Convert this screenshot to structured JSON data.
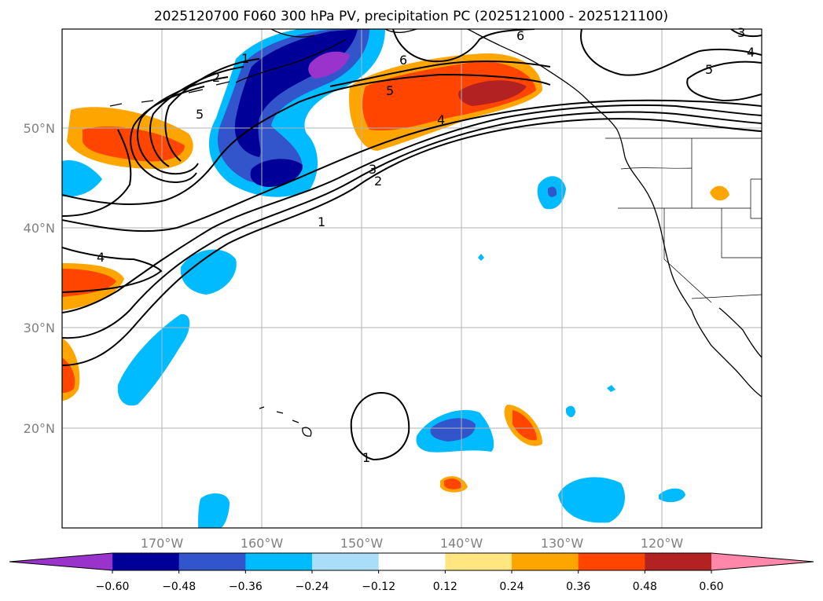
{
  "title": "2025120700 F060 300 hPa PV, precipitation PC (2025121000 - 2025121100)",
  "map": {
    "lat_labels": [
      "50°N",
      "40°N",
      "30°N",
      "20°N"
    ],
    "lon_labels": [
      "170°W",
      "160°W",
      "150°W",
      "140°W",
      "130°W",
      "120°W"
    ],
    "extent": {
      "lon_min": -180,
      "lon_max": -110,
      "lat_min": 10,
      "lat_max": 60
    },
    "gridlines": true
  },
  "pv_contour_labels": [
    "1",
    "2",
    "5",
    "3",
    "2",
    "1",
    "4",
    "5",
    "6",
    "6",
    "5",
    "4",
    "3",
    "1",
    "4"
  ],
  "colorbar": {
    "ticks": [
      "−0.60",
      "−0.48",
      "−0.36",
      "−0.24",
      "−0.12",
      "0.12",
      "0.24",
      "0.36",
      "0.48",
      "0.60"
    ],
    "colors": [
      "#9933cc",
      "#000099",
      "#3355cc",
      "#00bbff",
      "#aaddf7",
      "#ffffff",
      "#ffe680",
      "#ffa500",
      "#ff4500",
      "#b22222",
      "#ff88aa"
    ]
  }
}
